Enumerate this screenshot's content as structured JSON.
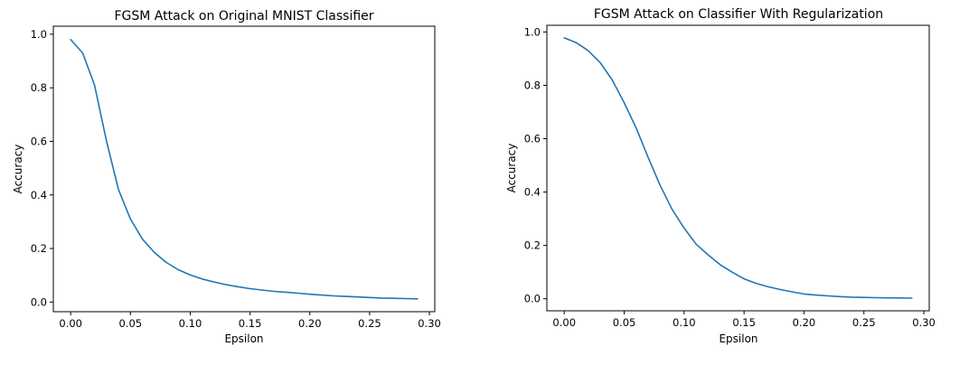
{
  "chart_data": [
    {
      "type": "line",
      "title": "FGSM Attack on Original MNIST Classifier",
      "xlabel": "Epsilon",
      "ylabel": "Accuracy",
      "xlim": [
        -0.0145,
        0.3045
      ],
      "ylim": [
        -0.036,
        1.03
      ],
      "xticks": [
        0.0,
        0.05,
        0.1,
        0.15,
        0.2,
        0.25,
        0.3
      ],
      "xtick_labels": [
        "0.00",
        "0.05",
        "0.10",
        "0.15",
        "0.20",
        "0.25",
        "0.30"
      ],
      "yticks": [
        0.0,
        0.2,
        0.4,
        0.6,
        0.8,
        1.0
      ],
      "ytick_labels": [
        "0.0",
        "0.2",
        "0.4",
        "0.6",
        "0.8",
        "1.0"
      ],
      "grid": false,
      "series": [
        {
          "color": "#1f77b4",
          "x": [
            0.0,
            0.01,
            0.02,
            0.03,
            0.04,
            0.05,
            0.06,
            0.07,
            0.08,
            0.09,
            0.1,
            0.11,
            0.12,
            0.13,
            0.14,
            0.15,
            0.16,
            0.17,
            0.18,
            0.19,
            0.2,
            0.21,
            0.22,
            0.23,
            0.24,
            0.25,
            0.26,
            0.27,
            0.28,
            0.29
          ],
          "y": [
            0.98,
            0.93,
            0.81,
            0.6,
            0.42,
            0.31,
            0.235,
            0.185,
            0.148,
            0.121,
            0.101,
            0.086,
            0.075,
            0.065,
            0.057,
            0.05,
            0.045,
            0.04,
            0.037,
            0.033,
            0.029,
            0.026,
            0.023,
            0.021,
            0.019,
            0.017,
            0.015,
            0.014,
            0.013,
            0.012
          ]
        }
      ]
    },
    {
      "type": "line",
      "title": "FGSM Attack on Classifier With Regularization",
      "xlabel": "Epsilon",
      "ylabel": "Accuracy",
      "xlim": [
        -0.0145,
        0.3045
      ],
      "ylim": [
        -0.045,
        1.025
      ],
      "xticks": [
        0.0,
        0.05,
        0.1,
        0.15,
        0.2,
        0.25,
        0.3
      ],
      "xtick_labels": [
        "0.00",
        "0.05",
        "0.10",
        "0.15",
        "0.20",
        "0.25",
        "0.30"
      ],
      "yticks": [
        0.0,
        0.2,
        0.4,
        0.6,
        0.8,
        1.0
      ],
      "ytick_labels": [
        "0.0",
        "0.2",
        "0.4",
        "0.6",
        "0.8",
        "1.0"
      ],
      "grid": false,
      "series": [
        {
          "color": "#1f77b4",
          "x": [
            0.0,
            0.01,
            0.02,
            0.03,
            0.04,
            0.05,
            0.06,
            0.07,
            0.08,
            0.09,
            0.1,
            0.11,
            0.12,
            0.13,
            0.14,
            0.15,
            0.16,
            0.17,
            0.18,
            0.19,
            0.2,
            0.21,
            0.22,
            0.23,
            0.24,
            0.25,
            0.26,
            0.27,
            0.28,
            0.29
          ],
          "y": [
            0.978,
            0.96,
            0.93,
            0.885,
            0.82,
            0.735,
            0.64,
            0.53,
            0.425,
            0.335,
            0.265,
            0.205,
            0.165,
            0.128,
            0.1,
            0.075,
            0.058,
            0.045,
            0.035,
            0.026,
            0.018,
            0.014,
            0.011,
            0.008,
            0.006,
            0.005,
            0.004,
            0.0035,
            0.003,
            0.0025
          ]
        }
      ]
    }
  ]
}
